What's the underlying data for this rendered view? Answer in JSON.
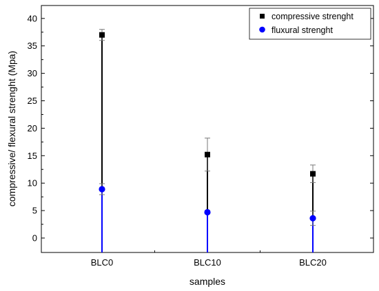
{
  "chart_data": {
    "type": "scatter",
    "categories": [
      "BLC0",
      "BLC10",
      "BLC20"
    ],
    "series": [
      {
        "name": "compressive strenght",
        "values": [
          37.0,
          15.2,
          11.7
        ],
        "error": [
          1.0,
          3.0,
          1.6
        ],
        "color": "#000000",
        "marker": "square"
      },
      {
        "name": "fluxural strenght",
        "values": [
          8.9,
          4.7,
          3.6
        ],
        "error": [
          1.0,
          0.3,
          1.3
        ],
        "color": "#0000ff",
        "marker": "circle"
      }
    ],
    "xlabel": "samples",
    "ylabel": "compressive/ flexural strenght (Mpa)",
    "ylim": [
      -3,
      42
    ],
    "yticks": [
      "0",
      "5",
      "10",
      "15",
      "20",
      "25",
      "30",
      "35",
      "40"
    ],
    "grid": false,
    "legend_position": "top-right"
  }
}
